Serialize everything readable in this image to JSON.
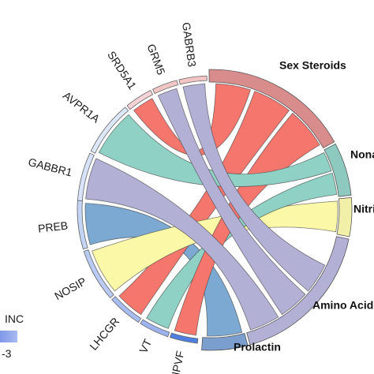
{
  "chart_data": {
    "type": "chord",
    "genes": [
      {
        "name": "GABRB3",
        "color": "#f3c4c4"
      },
      {
        "name": "GRM5",
        "color": "#f3c6c6"
      },
      {
        "name": "SRD5A1",
        "color": "#f5d3d6"
      },
      {
        "name": "AVPR1A",
        "color": "#dce8f8"
      },
      {
        "name": "GABBR1",
        "color": "#d6e3f8"
      },
      {
        "name": "PREB",
        "color": "#c3d4f5"
      },
      {
        "name": "NOSIP",
        "color": "#b9cbf4"
      },
      {
        "name": "LHCGR",
        "color": "#a7bcf0"
      },
      {
        "name": "VT",
        "color": "#9cb2ee"
      },
      {
        "name": "NPVF",
        "color": "#4e7fe0"
      }
    ],
    "pathways": [
      {
        "name": "Sex Steroids",
        "color": "#d98c8c"
      },
      {
        "name": "Nonapeptides",
        "color": "#8ec9bf"
      },
      {
        "name": "Nitric Oxide",
        "color": "#f2f0a8"
      },
      {
        "name": "Amino Acids",
        "color": "#b3b0d6"
      },
      {
        "name": "Prolactin",
        "color": "#7a9fcf"
      }
    ],
    "links": [
      {
        "gene": "GABRB3",
        "pathway": "Amino Acids",
        "color": "#b3b0d6"
      },
      {
        "gene": "GRM5",
        "pathway": "Amino Acids",
        "color": "#b3b0d6"
      },
      {
        "gene": "SRD5A1",
        "pathway": "Sex Steroids",
        "color": "#f5766d"
      },
      {
        "gene": "AVPR1A",
        "pathway": "Nonapeptides",
        "color": "#8fd1c4"
      },
      {
        "gene": "GABBR1",
        "pathway": "Amino Acids",
        "color": "#b3b0d6"
      },
      {
        "gene": "PREB",
        "pathway": "Prolactin",
        "color": "#7ba9d1"
      },
      {
        "gene": "NOSIP",
        "pathway": "Nitric Oxide",
        "color": "#fbf8a8"
      },
      {
        "gene": "LHCGR",
        "pathway": "Sex Steroids",
        "color": "#f5766d"
      },
      {
        "gene": "VT",
        "pathway": "Nonapeptides",
        "color": "#8fd1c4"
      },
      {
        "gene": "NPVF",
        "pathway": "Sex Steroids",
        "color": "#f5766d"
      }
    ],
    "legend": {
      "title": "INC",
      "value": "-3"
    }
  }
}
